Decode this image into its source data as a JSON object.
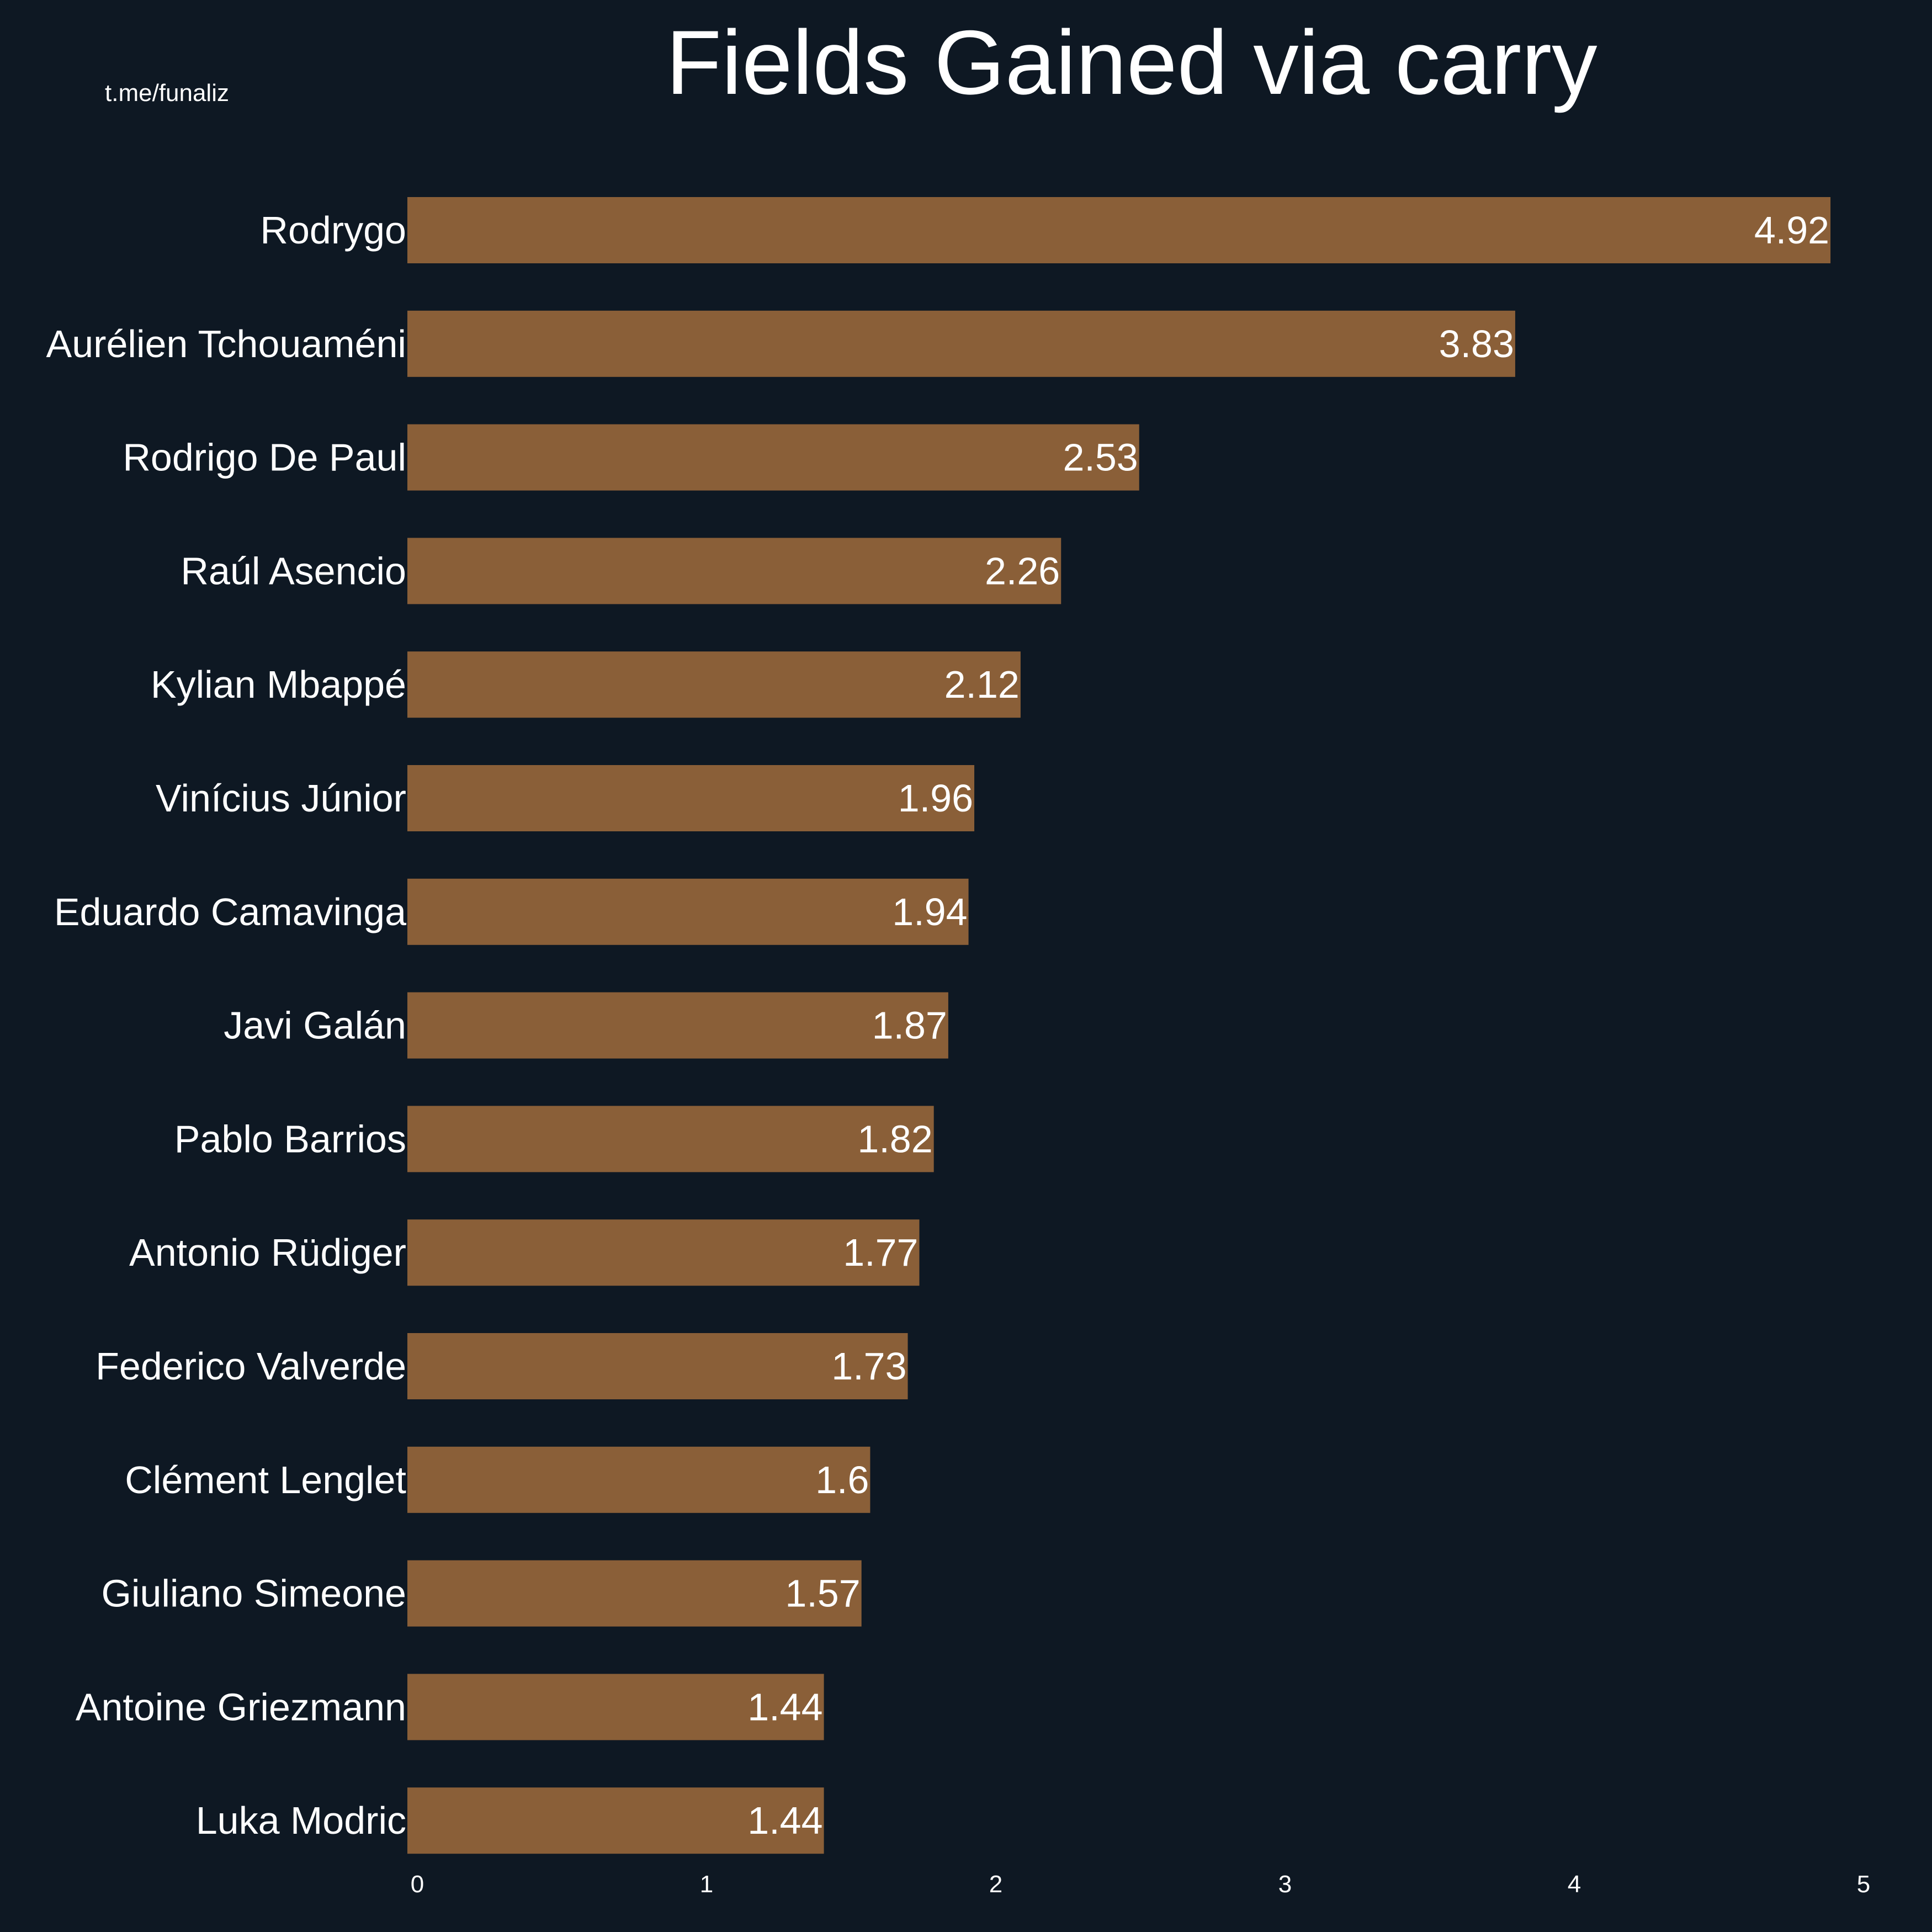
{
  "watermark": "t.me/funaliz",
  "colors": {
    "background": "#0e1823",
    "bar": "#8a5f38",
    "text": "#ffffff"
  },
  "chart_data": {
    "type": "bar",
    "orientation": "horizontal",
    "title": "Fields Gained via carry",
    "xlabel": "",
    "ylabel": "",
    "xlim": [
      0,
      5
    ],
    "xticks": [
      0,
      1,
      2,
      3,
      4,
      5
    ],
    "grid": false,
    "categories": [
      "Rodrygo",
      "Aurélien Tchouaméni",
      "Rodrigo De Paul",
      "Raúl Asencio",
      "Kylian Mbappé",
      "Vinícius Júnior",
      "Eduardo Camavinga",
      "Javi Galán",
      "Pablo Barrios",
      "Antonio Rüdiger",
      "Federico Valverde",
      "Clément Lenglet",
      "Giuliano Simeone",
      "Antoine Griezmann",
      "Luka Modric"
    ],
    "values": [
      4.92,
      3.83,
      2.53,
      2.26,
      2.12,
      1.96,
      1.94,
      1.87,
      1.82,
      1.77,
      1.73,
      1.6,
      1.57,
      1.44,
      1.44
    ],
    "value_labels": [
      "4.92",
      "3.83",
      "2.53",
      "2.26",
      "2.12",
      "1.96",
      "1.94",
      "1.87",
      "1.82",
      "1.77",
      "1.73",
      "1.6",
      "1.57",
      "1.44",
      "1.44"
    ]
  }
}
